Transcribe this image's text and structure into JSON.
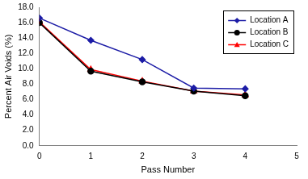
{
  "chart_data": {
    "type": "line",
    "xlabel": "Pass Number",
    "ylabel": "Percent Air Voids (%)",
    "x": [
      0,
      1,
      2,
      3,
      4
    ],
    "series": [
      {
        "name": "Location A",
        "color": "#1c1ca6",
        "marker": "diamond",
        "line_style": "solid",
        "values": [
          16.6,
          13.7,
          11.2,
          7.5,
          7.4
        ]
      },
      {
        "name": "Location B",
        "color": "#000000",
        "marker": "circle",
        "line_style": "solid",
        "values": [
          16.0,
          9.7,
          8.3,
          7.1,
          6.5
        ]
      },
      {
        "name": "Location C",
        "color": "#ff0000",
        "marker": "triangle",
        "line_style": "solid",
        "values": [
          16.1,
          9.9,
          8.4,
          7.1,
          6.6
        ]
      }
    ],
    "xlim": [
      0,
      5
    ],
    "xticks": [
      0,
      1,
      2,
      3,
      4,
      5
    ],
    "ylim": [
      0,
      18
    ],
    "yticks": [
      {
        "value": 0,
        "label": "0.0"
      },
      {
        "value": 2,
        "label": "2.0"
      },
      {
        "value": 4,
        "label": "4.0"
      },
      {
        "value": 6,
        "label": "6.0"
      },
      {
        "value": 8,
        "label": "8.0"
      },
      {
        "value": 10,
        "label": "10.0"
      },
      {
        "value": 12,
        "label": "12.0"
      },
      {
        "value": 14,
        "label": "14.0"
      },
      {
        "value": 16,
        "label": "16.0"
      },
      {
        "value": 18,
        "label": "18.0"
      }
    ],
    "grid": false,
    "legend": "upper right"
  }
}
